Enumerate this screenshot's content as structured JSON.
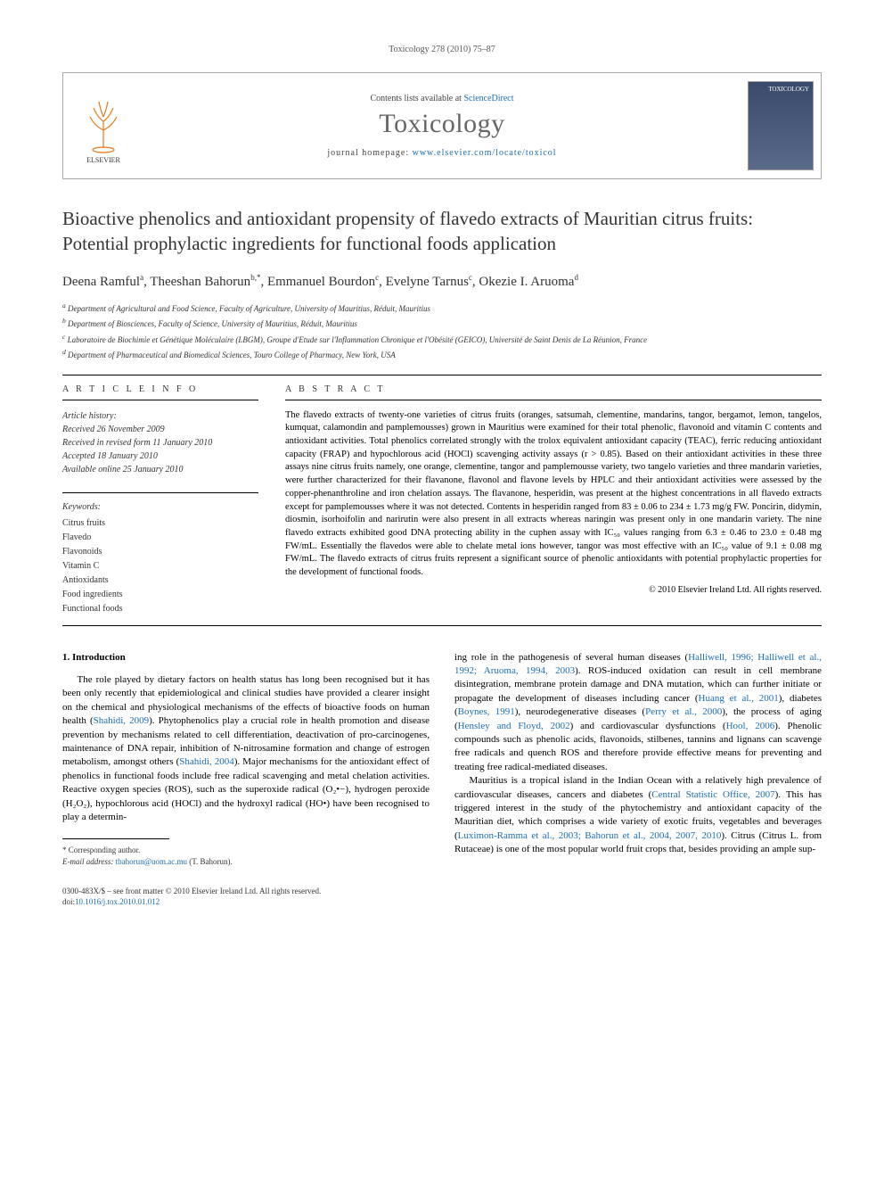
{
  "running_header": "Toxicology 278 (2010) 75–87",
  "masthead": {
    "contents_prefix": "Contents lists available at ",
    "contents_link": "ScienceDirect",
    "journal": "Toxicology",
    "homepage_prefix": "journal homepage: ",
    "homepage_url": "www.elsevier.com/locate/toxicol",
    "publisher_label": "ELSEVIER",
    "cover_label": "TOXICOLOGY"
  },
  "title": "Bioactive phenolics and antioxidant propensity of flavedo extracts of Mauritian citrus fruits: Potential prophylactic ingredients for functional foods application",
  "authors_html": "Deena Ramful<sup>a</sup>, Theeshan Bahorun<sup>b,*</sup>, Emmanuel Bourdon<sup>c</sup>, Evelyne Tarnus<sup>c</sup>, Okezie I. Aruoma<sup>d</sup>",
  "affiliations": [
    "a Department of Agricultural and Food Science, Faculty of Agriculture, University of Mauritius, Réduit, Mauritius",
    "b Department of Biosciences, Faculty of Science, University of Mauritius, Réduit, Mauritius",
    "c Laboratoire de Biochimie et Génétique Moléculaire (LBGM), Groupe d'Etude sur l'Inflammation Chronique et l'Obésité (GEICO), Université de Saint Denis de La Réunion, France",
    "d Department of Pharmaceutical and Biomedical Sciences, Touro College of Pharmacy, New York, USA"
  ],
  "info_label": "A R T I C L E   I N F O",
  "abstract_label": "A B S T R A C T",
  "history": {
    "label": "Article history:",
    "items": [
      "Received 26 November 2009",
      "Received in revised form 11 January 2010",
      "Accepted 18 January 2010",
      "Available online 25 January 2010"
    ]
  },
  "keywords": {
    "label": "Keywords:",
    "items": [
      "Citrus fruits",
      "Flavedo",
      "Flavonoids",
      "Vitamin C",
      "Antioxidants",
      "Food ingredients",
      "Functional foods"
    ]
  },
  "abstract": "The flavedo extracts of twenty-one varieties of citrus fruits (oranges, satsumah, clementine, mandarins, tangor, bergamot, lemon, tangelos, kumquat, calamondin and pamplemousses) grown in Mauritius were examined for their total phenolic, flavonoid and vitamin C contents and antioxidant activities. Total phenolics correlated strongly with the trolox equivalent antioxidant capacity (TEAC), ferric reducing antioxidant capacity (FRAP) and hypochlorous acid (HOCl) scavenging activity assays (r > 0.85). Based on their antioxidant activities in these three assays nine citrus fruits namely, one orange, clementine, tangor and pamplemousse variety, two tangelo varieties and three mandarin varieties, were further characterized for their flavanone, flavonol and flavone levels by HPLC and their antioxidant activities were assessed by the copper-phenanthroline and iron chelation assays. The flavanone, hesperidin, was present at the highest concentrations in all flavedo extracts except for pamplemousses where it was not detected. Contents in hesperidin ranged from 83 ± 0.06 to 234 ± 1.73 mg/g FW. Poncirin, didymin, diosmin, isorhoifolin and narirutin were also present in all extracts whereas naringin was present only in one mandarin variety. The nine flavedo extracts exhibited good DNA protecting ability in the cuphen assay with IC₅₀ values ranging from 6.3 ± 0.46 to 23.0 ± 0.48 mg FW/mL. Essentially the flavedos were able to chelate metal ions however, tangor was most effective with an IC₅₀ value of 9.1 ± 0.08 mg FW/mL. The flavedo extracts of citrus fruits represent a significant source of phenolic antioxidants with potential prophylactic properties for the development of functional foods.",
  "copyright": "© 2010 Elsevier Ireland Ltd. All rights reserved.",
  "section1_heading": "1. Introduction",
  "body": {
    "p1_pre": "The role played by dietary factors on health status has long been recognised but it has been only recently that epidemiological and clinical studies have provided a clearer insight on the chemical and physiological mechanisms of the effects of bioactive foods on human health (",
    "p1_ref1": "Shahidi, 2009",
    "p1_mid1": "). Phytophenolics play a crucial role in health promotion and disease prevention by mechanisms related to cell differentiation, deactivation of pro-carcinogenes, maintenance of DNA repair, inhibition of N-nitrosamine formation and change of estrogen metabolism, amongst others (",
    "p1_ref2": "Shahidi, 2004",
    "p1_mid2": "). Major mechanisms for the antioxidant effect of phenolics in functional foods include free radical scavenging and metal chelation activities. Reactive oxygen species (ROS), such as the superoxide radical (O₂•−), hydrogen peroxide (H₂O₂), hypochlorous acid (HOCl) and the hydroxyl radical (HO•) have been recognised to play a determin-",
    "p2_pre": "ing role in the pathogenesis of several human diseases (",
    "p2_ref1": "Halliwell, 1996; Halliwell et al., 1992; Aruoma, 1994, 2003",
    "p2_mid1": "). ROS-induced oxidation can result in cell membrane disintegration, membrane protein damage and DNA mutation, which can further initiate or propagate the development of diseases including cancer (",
    "p2_ref2": "Huang et al., 2001",
    "p2_mid2": "), diabetes (",
    "p2_ref3": "Boynes, 1991",
    "p2_mid3": "), neurodegenerative diseases (",
    "p2_ref4": "Perry et al., 2000",
    "p2_mid4": "), the process of aging (",
    "p2_ref5": "Hensley and Floyd, 2002",
    "p2_mid5": ") and cardiovascular dysfunctions (",
    "p2_ref6": "Hool, 2006",
    "p2_mid6": "). Phenolic compounds such as phenolic acids, flavonoids, stilbenes, tannins and lignans can scavenge free radicals and quench ROS and therefore provide effective means for preventing and treating free radical-mediated diseases.",
    "p3_pre": "Mauritius is a tropical island in the Indian Ocean with a relatively high prevalence of cardiovascular diseases, cancers and diabetes (",
    "p3_ref1": "Central Statistic Office, 2007",
    "p3_mid1": "). This has triggered interest in the study of the phytochemistry and antioxidant capacity of the Mauritian diet, which comprises a wide variety of exotic fruits, vegetables and beverages (",
    "p3_ref2": "Luximon-Ramma et al., 2003; Bahorun et al., 2004, 2007, 2010",
    "p3_mid2": "). Citrus (Citrus L. from Rutaceae) is one of the most popular world fruit crops that, besides providing an ample sup-"
  },
  "footnotes": {
    "corr_label": "* Corresponding author.",
    "email_label": "E-mail address: ",
    "email": "tbahorun@uom.ac.mu",
    "email_suffix": " (T. Bahorun)."
  },
  "footer": {
    "line1": "0300-483X/$ – see front matter © 2010 Elsevier Ireland Ltd. All rights reserved.",
    "line2_prefix": "doi:",
    "doi": "10.1016/j.tox.2010.01.012"
  },
  "colors": {
    "link": "#1a6db5",
    "elsevier_orange": "#e67a1a",
    "journal_gray": "#666666"
  }
}
